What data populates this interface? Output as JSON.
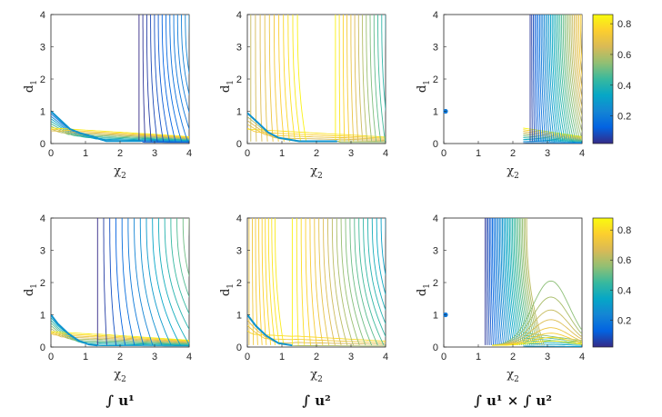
{
  "figure": {
    "column_titles": [
      "∫ u¹",
      "∫ u²",
      "∫ u¹ × ∫ u²"
    ]
  },
  "colormap": {
    "name": "parula",
    "stops": [
      "#352a87",
      "#0363e1",
      "#1485d4",
      "#06a7c6",
      "#38b99e",
      "#92bf73",
      "#d9ba56",
      "#fcce2e",
      "#f9fb0e"
    ]
  },
  "chart_data": [
    {
      "type": "contour",
      "row": 1,
      "col": 1,
      "xlabel": "χ",
      "xlabel_sub": "2",
      "ylabel": "d",
      "ylabel_sub": "1",
      "xlim": [
        0,
        4
      ],
      "ylim": [
        0,
        4
      ],
      "xticks": [
        "0",
        "1",
        "2",
        "3",
        "4"
      ],
      "yticks": [
        "0",
        "1",
        "2",
        "3",
        "4"
      ],
      "boundary": [
        [
          0,
          1.0
        ],
        [
          0.25,
          0.75
        ],
        [
          0.55,
          0.45
        ],
        [
          0.85,
          0.32
        ],
        [
          1.2,
          0.22
        ],
        [
          1.6,
          0.08
        ],
        [
          2.6,
          0.08
        ]
      ],
      "vertical_levels": {
        "count": 14,
        "from": 2.55,
        "to": 4.0,
        "level_from": 0.02,
        "level_to": 0.25,
        "curvature": 0.5
      },
      "horizontal_levels": {
        "count": 11,
        "level_from": 0.1,
        "level_to": 0.82
      }
    },
    {
      "type": "contour",
      "row": 1,
      "col": 2,
      "xlabel": "χ",
      "xlabel_sub": "2",
      "ylabel": "d",
      "ylabel_sub": "1",
      "xlim": [
        0,
        4
      ],
      "ylim": [
        0,
        4
      ],
      "xticks": [
        "0",
        "1",
        "2",
        "3",
        "4"
      ],
      "yticks": [
        "0",
        "1",
        "2",
        "3",
        "4"
      ],
      "boundary": [
        [
          0,
          0.95
        ],
        [
          0.3,
          0.65
        ],
        [
          0.6,
          0.35
        ],
        [
          0.9,
          0.18
        ],
        [
          1.5,
          0.07
        ],
        [
          2.6,
          0.07
        ]
      ],
      "vertical_left": {
        "count": 11,
        "from": 0.1,
        "to": 1.45,
        "level_from": 0.62,
        "level_to": 0.84
      },
      "vertical_right": {
        "count": 14,
        "from": 2.55,
        "to": 4.0,
        "level_from": 0.84,
        "level_to": 0.38
      },
      "horizontal_levels": {
        "count": 6,
        "level_from": 0.55,
        "level_to": 0.8
      }
    },
    {
      "type": "contour",
      "row": 1,
      "col": 3,
      "xlabel": "χ",
      "xlabel_sub": "2",
      "ylabel": "d",
      "ylabel_sub": "1",
      "xlim": [
        0,
        4
      ],
      "ylim": [
        0,
        4
      ],
      "xticks": [
        "0",
        "1",
        "2",
        "3",
        "4"
      ],
      "yticks": [
        "0",
        "1",
        "2",
        "3",
        "4"
      ],
      "marker_point": [
        0,
        1
      ],
      "vertical_levels": {
        "count": 34,
        "from": 2.5,
        "to": 4.0,
        "level_from": 0.04,
        "level_to": 0.75,
        "curvature": 0.35
      },
      "horizontal_levels": {
        "count": 10,
        "level_from": 0.2,
        "level_to": 0.85
      }
    },
    {
      "type": "contour",
      "row": 2,
      "col": 1,
      "xlabel": "χ",
      "xlabel_sub": "2",
      "ylabel": "d",
      "ylabel_sub": "1",
      "xlim": [
        0,
        4
      ],
      "ylim": [
        0,
        4
      ],
      "xticks": [
        "0",
        "1",
        "2",
        "3",
        "4"
      ],
      "yticks": [
        "0",
        "1",
        "2",
        "3",
        "4"
      ],
      "boundary": [
        [
          0,
          1.0
        ],
        [
          0.2,
          0.72
        ],
        [
          0.5,
          0.42
        ],
        [
          0.8,
          0.2
        ],
        [
          1.1,
          0.08
        ],
        [
          1.35,
          0.05
        ]
      ],
      "vertical_levels": {
        "count": 16,
        "from": 1.35,
        "to": 4.0,
        "level_from": 0.02,
        "level_to": 0.55,
        "curvature": 0.8
      },
      "horizontal_levels": {
        "count": 10,
        "level_from": 0.3,
        "level_to": 0.85
      }
    },
    {
      "type": "contour",
      "row": 2,
      "col": 2,
      "xlabel": "χ",
      "xlabel_sub": "2",
      "ylabel": "d",
      "ylabel_sub": "1",
      "xlim": [
        0,
        4
      ],
      "ylim": [
        0,
        4
      ],
      "xticks": [
        "0",
        "1",
        "2",
        "3",
        "4"
      ],
      "yticks": [
        "0",
        "1",
        "2",
        "3",
        "4"
      ],
      "boundary": [
        [
          0,
          1.0
        ],
        [
          0.25,
          0.65
        ],
        [
          0.55,
          0.35
        ],
        [
          0.9,
          0.12
        ],
        [
          1.3,
          0.05
        ]
      ],
      "vertical_left": {
        "count": 9,
        "from": 0.05,
        "to": 0.8,
        "level_from": 0.72,
        "level_to": 0.84
      },
      "vertical_right": {
        "count": 22,
        "from": 1.3,
        "to": 4.0,
        "level_from": 0.86,
        "level_to": 0.3,
        "curvature": 0.6
      },
      "horizontal_levels": {
        "count": 4,
        "level_from": 0.6,
        "level_to": 0.8
      }
    },
    {
      "type": "contour",
      "row": 2,
      "col": 3,
      "xlabel": "χ",
      "xlabel_sub": "2",
      "ylabel": "d",
      "ylabel_sub": "1",
      "xlim": [
        0,
        4
      ],
      "ylim": [
        0,
        4
      ],
      "xticks": [
        "0",
        "1",
        "2",
        "3",
        "4"
      ],
      "yticks": [
        "0",
        "1",
        "2",
        "3",
        "4"
      ],
      "marker_point": [
        0,
        1
      ],
      "vertical_levels": {
        "count": 30,
        "from": 1.2,
        "to": 2.4,
        "level_from": 0.04,
        "level_to": 0.62,
        "curvature": 0.3
      },
      "bumps": {
        "count": 8,
        "center": 3.1,
        "heights": [
          2.0,
          1.5,
          1.1,
          0.8,
          0.55,
          0.38,
          0.25,
          0.14
        ],
        "level_from": 0.55,
        "level_to": 0.85
      },
      "horizontal_levels": {
        "count": 6,
        "level_from": 0.3,
        "level_to": 0.55
      }
    }
  ],
  "colorbars": [
    {
      "row": 1,
      "range": [
        0.02,
        0.86
      ],
      "ticks": [
        "0.2",
        "0.4",
        "0.6",
        "0.8"
      ],
      "tick_values": [
        0.2,
        0.4,
        0.6,
        0.8
      ]
    },
    {
      "row": 2,
      "range": [
        0.02,
        0.88
      ],
      "ticks": [
        "0.2",
        "0.4",
        "0.6",
        "0.8"
      ],
      "tick_values": [
        0.2,
        0.4,
        0.6,
        0.8
      ]
    }
  ]
}
